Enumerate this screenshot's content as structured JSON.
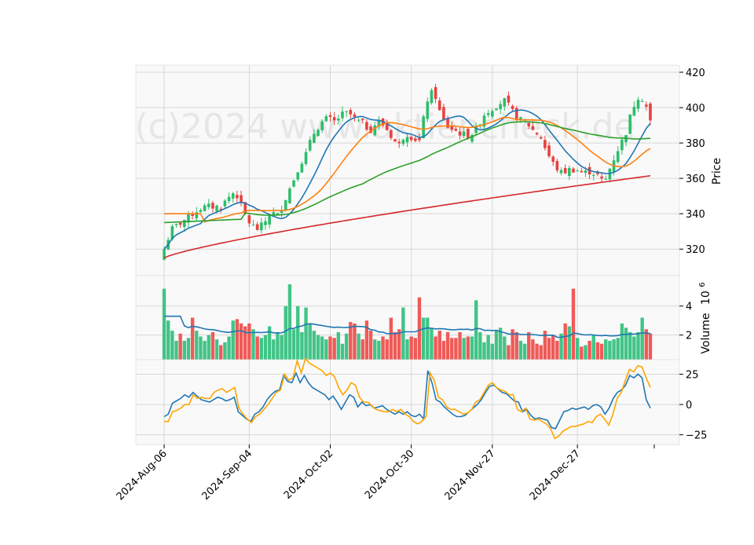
{
  "chart_data": [
    {
      "type": "candlestick",
      "panel": "price",
      "ylabel": "Price",
      "ylim": [
        305,
        424
      ],
      "yticks": [
        320,
        340,
        360,
        380,
        400,
        420
      ],
      "watermark": "(c)2024 www.aktiencheck.de",
      "x_ticks": [
        "2024-Aug-06",
        "2024-Sep-04",
        "2024-Oct-02",
        "2024-Oct-30",
        "2024-Nov-27",
        "2024-Dec-27"
      ],
      "x_tick_indices": [
        0,
        21,
        41,
        61,
        81,
        102
      ],
      "n_bars": 121,
      "up_color": "#2ebd6b",
      "down_color": "#e8413e",
      "anchors": [
        [
          0,
          320
        ],
        [
          2,
          331
        ],
        [
          6,
          337
        ],
        [
          8,
          340
        ],
        [
          10,
          343
        ],
        [
          12,
          344
        ],
        [
          16,
          344
        ],
        [
          18,
          349
        ],
        [
          20,
          353
        ],
        [
          22,
          343
        ],
        [
          24,
          335
        ],
        [
          26,
          331
        ],
        [
          28,
          334
        ],
        [
          30,
          341
        ],
        [
          32,
          339
        ],
        [
          34,
          348
        ],
        [
          36,
          357
        ],
        [
          38,
          367
        ],
        [
          40,
          374
        ],
        [
          42,
          385
        ],
        [
          44,
          391
        ],
        [
          46,
          394
        ],
        [
          48,
          392
        ],
        [
          50,
          396
        ],
        [
          52,
          397
        ],
        [
          54,
          393
        ],
        [
          56,
          391
        ],
        [
          58,
          387
        ],
        [
          60,
          392
        ],
        [
          62,
          390
        ],
        [
          64,
          384
        ],
        [
          66,
          378
        ],
        [
          68,
          386
        ],
        [
          70,
          383
        ],
        [
          72,
          381
        ],
        [
          74,
          404
        ],
        [
          76,
          410
        ],
        [
          78,
          395
        ],
        [
          80,
          389
        ],
        [
          82,
          387
        ],
        [
          84,
          385
        ],
        [
          86,
          384
        ],
        [
          88,
          388
        ],
        [
          90,
          396
        ],
        [
          92,
          399
        ],
        [
          94,
          402
        ],
        [
          96,
          404
        ],
        [
          98,
          398
        ],
        [
          100,
          393
        ],
        [
          102,
          392
        ],
        [
          104,
          387
        ],
        [
          106,
          384
        ],
        [
          108,
          374
        ],
        [
          110,
          367
        ],
        [
          112,
          363
        ],
        [
          114,
          365
        ],
        [
          116,
          365
        ],
        [
          118,
          363
        ],
        [
          120,
          364
        ],
        [
          122,
          362
        ],
        [
          124,
          357
        ],
        [
          126,
          368
        ],
        [
          128,
          377
        ],
        [
          130,
          385
        ],
        [
          132,
          400
        ],
        [
          134,
          408
        ],
        [
          136,
          400
        ],
        [
          137,
          392
        ]
      ],
      "ma_series": [
        {
          "window": 10,
          "color": "#1f77b4"
        },
        {
          "window": 20,
          "color": "#ff7f0e"
        },
        {
          "window": 50,
          "color": "#2ca02c"
        },
        {
          "window": 200,
          "color": "#d62728"
        }
      ]
    },
    {
      "type": "bar",
      "panel": "volume",
      "ylabel": "Volume",
      "scale_label": "10",
      "scale_exponent": "6",
      "ylim": [
        0.3,
        6.1
      ],
      "yticks": [
        2,
        4
      ],
      "ma_color": "#1f77b4",
      "values": [
        5.2,
        3.0,
        2.3,
        1.6,
        2.1,
        1.6,
        1.8,
        3.2,
        2.3,
        1.9,
        1.6,
        2.0,
        2.2,
        1.7,
        1.3,
        1.5,
        1.9,
        3.0,
        3.1,
        2.8,
        2.6,
        2.8,
        2.4,
        1.9,
        1.8,
        2.0,
        2.6,
        1.7,
        2.2,
        2.0,
        4.0,
        5.5,
        2.4,
        4.0,
        2.2,
        3.9,
        2.8,
        2.3,
        2.0,
        1.9,
        1.7,
        1.9,
        1.8,
        2.2,
        1.4,
        2.1,
        2.9,
        2.8,
        2.1,
        1.7,
        3.0,
        2.3,
        1.7,
        1.6,
        1.9,
        1.7,
        3.2,
        2.2,
        2.4,
        3.9,
        1.7,
        1.9,
        1.8,
        4.6,
        3.2,
        3.2,
        2.5,
        1.9,
        2.3,
        1.6,
        2.2,
        1.8,
        1.8,
        2.2,
        1.8,
        1.9,
        1.9,
        4.4,
        2.2,
        1.5,
        2.0,
        1.4,
        2.3,
        2.5,
        1.9,
        1.3,
        2.4,
        2.2,
        1.6,
        1.4,
        2.2,
        1.7,
        1.4,
        1.3,
        2.3,
        1.8,
        2.0,
        1.6,
        2.1,
        2.8,
        2.6,
        5.2,
        1.8,
        1.2,
        1.3,
        1.6,
        2.0,
        1.5,
        1.4,
        1.7,
        1.6,
        1.7,
        1.8,
        2.8,
        2.5,
        2.2,
        1.9,
        2.2,
        3.2,
        2.4,
        2.1
      ]
    },
    {
      "type": "line",
      "panel": "oscillator",
      "ylim": [
        -33,
        37
      ],
      "yticks": [
        -25,
        0,
        25
      ],
      "series": [
        {
          "color": "#1f77b4",
          "values": [
            -10,
            -8,
            1,
            3,
            5,
            8,
            6,
            10,
            7,
            4,
            3,
            2,
            4,
            6,
            5,
            3,
            4,
            6,
            -6,
            -9,
            -12,
            -14,
            -8,
            -6,
            -2,
            4,
            8,
            11,
            12,
            24,
            19,
            18,
            26,
            18,
            24,
            18,
            14,
            12,
            10,
            8,
            4,
            7,
            2,
            -4,
            2,
            8,
            6,
            -2,
            2,
            -1,
            0,
            -3,
            -2,
            -1,
            -4,
            -6,
            -8,
            -6,
            -8,
            -6,
            -9,
            -10,
            -8,
            -12,
            28,
            18,
            4,
            2,
            -2,
            -5,
            -8,
            -10,
            -10,
            -9,
            -6,
            -3,
            0,
            4,
            10,
            15,
            16,
            13,
            10,
            9,
            6,
            3,
            2,
            -6,
            -4,
            -9,
            -12,
            -11,
            -12,
            -13,
            -19,
            -20,
            -13,
            -6,
            -5,
            -3,
            -4,
            -3,
            -2,
            -4,
            -1,
            0,
            -2,
            -8,
            -3,
            5,
            10,
            12,
            16,
            24,
            22,
            25,
            22,
            4,
            -3
          ]
        },
        {
          "color": "#ffa500",
          "values": [
            -14,
            -14,
            -6,
            -5,
            -3,
            0,
            0,
            8,
            5,
            6,
            5,
            5,
            10,
            12,
            13,
            10,
            12,
            14,
            -3,
            -8,
            -12,
            -15,
            -10,
            -8,
            -4,
            0,
            5,
            10,
            12,
            25,
            20,
            22,
            36,
            26,
            38,
            34,
            32,
            30,
            28,
            24,
            26,
            23,
            14,
            8,
            12,
            18,
            16,
            6,
            2,
            2,
            -1,
            -4,
            -5,
            -6,
            -6,
            -4,
            -6,
            -4,
            -8,
            -10,
            -14,
            -16,
            -14,
            -10,
            26,
            20,
            6,
            4,
            -2,
            -4,
            -4,
            -6,
            -8,
            -7,
            -4,
            2,
            4,
            10,
            16,
            18,
            14,
            12,
            11,
            8,
            8,
            -4,
            -6,
            -3,
            -12,
            -13,
            -12,
            -14,
            -16,
            -20,
            -28,
            -26,
            -22,
            -20,
            -18,
            -18,
            -17,
            -16,
            -14,
            -15,
            -10,
            -8,
            -12,
            -17,
            -8,
            5,
            10,
            20,
            29,
            27,
            32,
            31,
            22,
            14
          ]
        }
      ]
    }
  ]
}
